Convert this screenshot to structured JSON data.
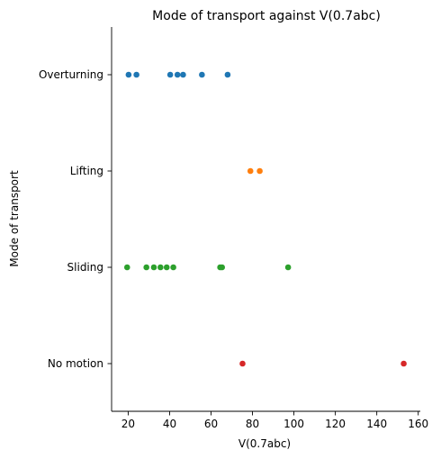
{
  "chart_data": {
    "type": "scatter",
    "title": "Mode of transport against V(0.7abc)",
    "xlabel": "V(0.7abc)",
    "ylabel": "Mode of transport",
    "xlim": [
      12,
      161
    ],
    "xticks": [
      20,
      40,
      60,
      80,
      100,
      120,
      140,
      160
    ],
    "categories": [
      "Overturning",
      "Lifting",
      "Sliding",
      "No motion"
    ],
    "grid": false,
    "series": [
      {
        "category": "Overturning",
        "color": "#1f77b4",
        "x": [
          20.2,
          24,
          40.3,
          43.8,
          46.5,
          55.6,
          68
        ]
      },
      {
        "category": "Lifting",
        "color": "#ff7f0e",
        "x": [
          79,
          83.5
        ]
      },
      {
        "category": "Sliding",
        "color": "#2ca02c",
        "x": [
          19.5,
          28.8,
          32.4,
          35.6,
          38.6,
          41.8,
          64.4,
          65.3,
          97.2
        ]
      },
      {
        "category": "No motion",
        "color": "#d62728",
        "x": [
          75.2,
          153
        ]
      }
    ]
  }
}
